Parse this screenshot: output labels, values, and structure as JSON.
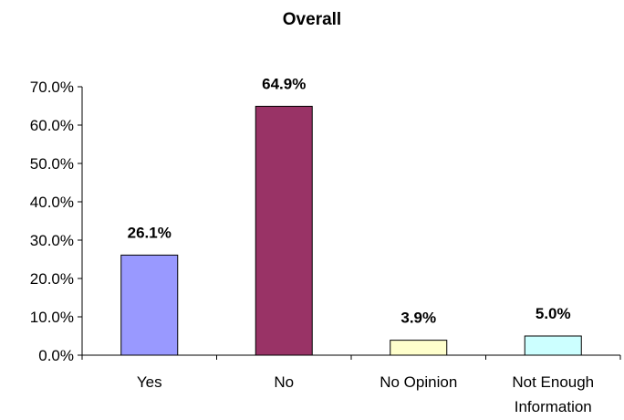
{
  "chart_data": {
    "type": "bar",
    "title": "Overall",
    "xlabel": "",
    "ylabel": "",
    "categories": [
      [
        "Yes"
      ],
      [
        "No"
      ],
      [
        "No Opinion"
      ],
      [
        "Not Enough",
        "Information"
      ]
    ],
    "values": [
      26.1,
      64.9,
      3.9,
      5.0
    ],
    "data_labels": [
      "26.1%",
      "64.9%",
      "3.9%",
      "5.0%"
    ],
    "colors": [
      "#9999ff",
      "#993366",
      "#ffffcc",
      "#ccffff"
    ],
    "ylim": [
      0,
      70
    ],
    "yticks": [
      0,
      10,
      20,
      30,
      40,
      50,
      60,
      70
    ],
    "ytick_labels": [
      "0.0%",
      "10.0%",
      "20.0%",
      "30.0%",
      "40.0%",
      "50.0%",
      "60.0%",
      "70.0%"
    ],
    "grid": false,
    "legend": "none"
  }
}
